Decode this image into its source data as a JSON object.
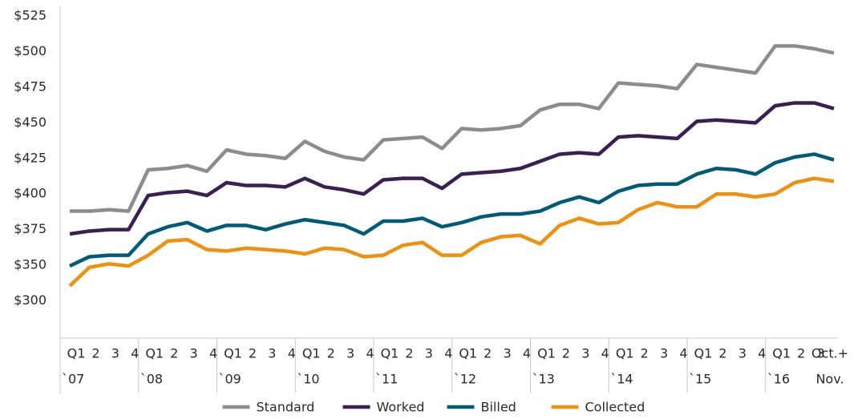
{
  "chart_data": {
    "type": "line",
    "categories": [
      "Q1",
      "2",
      "3",
      "4",
      "Q1",
      "2",
      "3",
      "4",
      "Q1",
      "2",
      "3",
      "4",
      "Q1",
      "2",
      "3",
      "4",
      "Q1",
      "2",
      "3",
      "4",
      "Q1",
      "2",
      "3",
      "4",
      "Q1",
      "2",
      "3",
      "4",
      "Q1",
      "2",
      "3",
      "4",
      "Q1",
      "2",
      "3",
      "4",
      "Q1",
      "2",
      "3",
      "Oct.+"
    ],
    "year_labels": [
      "`07",
      "`08",
      "`09",
      "`10",
      "`11",
      "`12",
      "`13",
      "`14",
      "`15",
      "`16",
      "Nov."
    ],
    "series": [
      {
        "name": "Standard",
        "color": "#8c8c8c",
        "values": [
          388,
          388,
          389,
          388,
          417,
          418,
          420,
          416,
          431,
          428,
          427,
          425,
          437,
          430,
          426,
          424,
          438,
          439,
          440,
          432,
          446,
          445,
          446,
          448,
          459,
          463,
          463,
          460,
          478,
          477,
          476,
          474,
          491,
          489,
          487,
          485,
          504,
          504,
          502,
          499
        ]
      },
      {
        "name": "Worked",
        "color": "#3b1f54",
        "values": [
          372,
          374,
          375,
          375,
          399,
          401,
          402,
          399,
          408,
          406,
          406,
          405,
          411,
          405,
          403,
          400,
          410,
          411,
          411,
          404,
          414,
          415,
          416,
          418,
          423,
          428,
          429,
          428,
          440,
          441,
          440,
          439,
          451,
          452,
          451,
          450,
          462,
          464,
          464,
          460
        ]
      },
      {
        "name": "Billed",
        "color": "#005a7a",
        "values": [
          349,
          356,
          357,
          357,
          372,
          377,
          380,
          374,
          378,
          378,
          375,
          379,
          382,
          380,
          378,
          372,
          381,
          381,
          383,
          377,
          380,
          384,
          386,
          386,
          388,
          394,
          398,
          394,
          402,
          406,
          407,
          407,
          414,
          418,
          417,
          414,
          422,
          426,
          428,
          424
        ]
      },
      {
        "name": "Collected",
        "color": "#f0900f",
        "values": [
          321,
          347,
          351,
          349,
          357,
          367,
          368,
          361,
          360,
          362,
          361,
          360,
          358,
          362,
          361,
          356,
          357,
          364,
          366,
          357,
          357,
          366,
          370,
          371,
          365,
          378,
          383,
          379,
          380,
          389,
          394,
          391,
          391,
          400,
          400,
          398,
          400,
          408,
          411,
          409
        ]
      }
    ],
    "ylim": [
      250,
      525
    ],
    "yticks": [
      {
        "value": 300,
        "label": "$300"
      },
      {
        "value": 350,
        "label": "$350"
      },
      {
        "value": 375,
        "label": "$375"
      },
      {
        "value": 400,
        "label": "$400"
      },
      {
        "value": 425,
        "label": "$425"
      },
      {
        "value": 450,
        "label": "$450"
      },
      {
        "value": 475,
        "label": "$475"
      },
      {
        "value": 500,
        "label": "$500"
      },
      {
        "value": 525,
        "label": "$525"
      }
    ],
    "legend": "bottom"
  }
}
